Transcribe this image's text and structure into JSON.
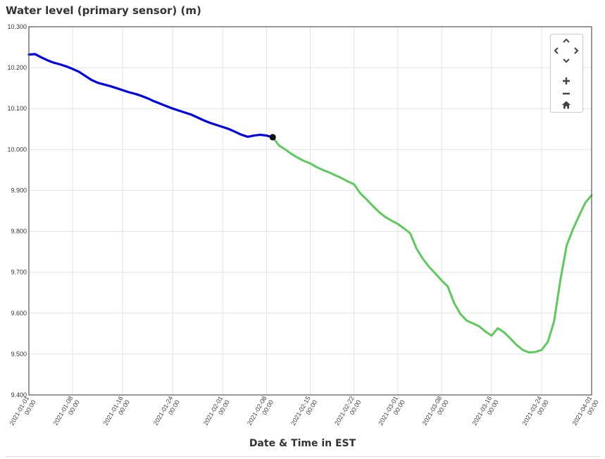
{
  "title": "Water level (primary sensor) (m)",
  "colors": {
    "primary": "#0000e6",
    "secondary": "#5ec95e",
    "grid": "#e4e4e4",
    "axis": "#555555",
    "marker": "#111111"
  },
  "chart_data": {
    "type": "line",
    "title": "Water level (primary sensor) (m)",
    "xlabel": "Date & Time in EST",
    "ylabel": "",
    "xlim": [
      "2021-01-01 00:00",
      "2021-04-01 00:00"
    ],
    "ylim": [
      9.4,
      10.3
    ],
    "yticks": [
      "9.400",
      "9.500",
      "9.600",
      "9.700",
      "9.800",
      "9.900",
      "10.000",
      "10.100",
      "10.200",
      "10.300"
    ],
    "xticks": [
      {
        "date": "2021-01-01",
        "time": "00:00"
      },
      {
        "date": "2021-01-08",
        "time": "00:00"
      },
      {
        "date": "2021-01-16",
        "time": "00:00"
      },
      {
        "date": "2021-01-24",
        "time": "00:00"
      },
      {
        "date": "2021-02-01",
        "time": "00:00"
      },
      {
        "date": "2021-02-08",
        "time": "00:00"
      },
      {
        "date": "2021-02-15",
        "time": "00:00"
      },
      {
        "date": "2021-02-22",
        "time": "00:00"
      },
      {
        "date": "2021-03-01",
        "time": "00:00"
      },
      {
        "date": "2021-03-08",
        "time": "00:00"
      },
      {
        "date": "2021-03-16",
        "time": "00:00"
      },
      {
        "date": "2021-03-24",
        "time": "00:00"
      },
      {
        "date": "2021-04-01",
        "time": "00:00"
      }
    ],
    "grid": true,
    "legend": "none",
    "series": [
      {
        "color": "#0000e6",
        "points": [
          [
            "2021-01-01",
            10.232
          ],
          [
            "2021-01-02",
            10.233
          ],
          [
            "2021-01-03",
            10.225
          ],
          [
            "2021-01-04",
            10.218
          ],
          [
            "2021-01-05",
            10.212
          ],
          [
            "2021-01-06",
            10.208
          ],
          [
            "2021-01-07",
            10.203
          ],
          [
            "2021-01-08",
            10.197
          ],
          [
            "2021-01-09",
            10.19
          ],
          [
            "2021-01-10",
            10.18
          ],
          [
            "2021-01-11",
            10.17
          ],
          [
            "2021-01-12",
            10.163
          ],
          [
            "2021-01-13",
            10.159
          ],
          [
            "2021-01-14",
            10.155
          ],
          [
            "2021-01-15",
            10.15
          ],
          [
            "2021-01-16",
            10.145
          ],
          [
            "2021-01-17",
            10.14
          ],
          [
            "2021-01-18",
            10.136
          ],
          [
            "2021-01-19",
            10.131
          ],
          [
            "2021-01-20",
            10.125
          ],
          [
            "2021-01-21",
            10.118
          ],
          [
            "2021-01-22",
            10.112
          ],
          [
            "2021-01-23",
            10.106
          ],
          [
            "2021-01-24",
            10.1
          ],
          [
            "2021-01-25",
            10.095
          ],
          [
            "2021-01-26",
            10.09
          ],
          [
            "2021-01-27",
            10.085
          ],
          [
            "2021-01-28",
            10.078
          ],
          [
            "2021-01-29",
            10.071
          ],
          [
            "2021-01-30",
            10.065
          ],
          [
            "2021-01-31",
            10.06
          ],
          [
            "2021-02-01",
            10.055
          ],
          [
            "2021-02-02",
            10.05
          ],
          [
            "2021-02-03",
            10.043
          ],
          [
            "2021-02-04",
            10.036
          ],
          [
            "2021-02-05",
            10.031
          ],
          [
            "2021-02-06",
            10.034
          ],
          [
            "2021-02-07",
            10.036
          ],
          [
            "2021-02-08",
            10.034
          ],
          [
            "2021-02-09",
            10.03
          ]
        ]
      },
      {
        "color": "#5ec95e",
        "points": [
          [
            "2021-02-09",
            10.03
          ],
          [
            "2021-02-10",
            10.01
          ],
          [
            "2021-02-11",
            10.0
          ],
          [
            "2021-02-12",
            9.989
          ],
          [
            "2021-02-13",
            9.98
          ],
          [
            "2021-02-14",
            9.972
          ],
          [
            "2021-02-15",
            9.966
          ],
          [
            "2021-02-16",
            9.957
          ],
          [
            "2021-02-17",
            9.95
          ],
          [
            "2021-02-18",
            9.944
          ],
          [
            "2021-02-19",
            9.937
          ],
          [
            "2021-02-20",
            9.93
          ],
          [
            "2021-02-21",
            9.922
          ],
          [
            "2021-02-22",
            9.915
          ],
          [
            "2021-02-23",
            9.893
          ],
          [
            "2021-02-24",
            9.878
          ],
          [
            "2021-02-25",
            9.862
          ],
          [
            "2021-02-26",
            9.847
          ],
          [
            "2021-02-27",
            9.835
          ],
          [
            "2021-02-28",
            9.826
          ],
          [
            "2021-03-01",
            9.818
          ],
          [
            "2021-03-02",
            9.807
          ],
          [
            "2021-03-03",
            9.795
          ],
          [
            "2021-03-04",
            9.758
          ],
          [
            "2021-03-05",
            9.733
          ],
          [
            "2021-03-06",
            9.713
          ],
          [
            "2021-03-07",
            9.697
          ],
          [
            "2021-03-08",
            9.68
          ],
          [
            "2021-03-09",
            9.665
          ],
          [
            "2021-03-10",
            9.625
          ],
          [
            "2021-03-11",
            9.598
          ],
          [
            "2021-03-12",
            9.582
          ],
          [
            "2021-03-13",
            9.575
          ],
          [
            "2021-03-14",
            9.568
          ],
          [
            "2021-03-15",
            9.555
          ],
          [
            "2021-03-16",
            9.545
          ],
          [
            "2021-03-17",
            9.563
          ],
          [
            "2021-03-18",
            9.553
          ],
          [
            "2021-03-19",
            9.538
          ],
          [
            "2021-03-20",
            9.522
          ],
          [
            "2021-03-21",
            9.51
          ],
          [
            "2021-03-22",
            9.504
          ],
          [
            "2021-03-23",
            9.505
          ],
          [
            "2021-03-24",
            9.51
          ],
          [
            "2021-03-25",
            9.53
          ],
          [
            "2021-03-26",
            9.58
          ],
          [
            "2021-03-27",
            9.68
          ],
          [
            "2021-03-28",
            9.765
          ],
          [
            "2021-03-29",
            9.805
          ],
          [
            "2021-03-30",
            9.838
          ],
          [
            "2021-03-31",
            9.87
          ],
          [
            "2021-04-01",
            9.888
          ]
        ]
      }
    ],
    "marker": {
      "date": "2021-02-09",
      "value": 10.03
    }
  },
  "navigation": {
    "up": "chevron-up-icon",
    "left": "chevron-left-icon",
    "right": "chevron-right-icon",
    "down": "chevron-down-icon",
    "zoom_in": "plus-icon",
    "zoom_out": "minus-icon",
    "home": "home-icon"
  }
}
